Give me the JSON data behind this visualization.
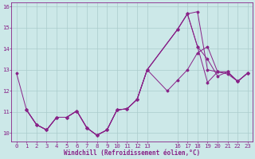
{
  "background_color": "#cce8e8",
  "line_color": "#882288",
  "grid_color": "#aacccc",
  "xlabel": "Windchill (Refroidissement éolien,°C)",
  "xlabel_fontsize": 5.5,
  "tick_fontsize": 5.2,
  "xlim": [
    -0.5,
    23.5
  ],
  "ylim": [
    9.6,
    16.2
  ],
  "yticks": [
    10,
    11,
    12,
    13,
    14,
    15,
    16
  ],
  "xticks": [
    0,
    1,
    2,
    3,
    4,
    5,
    6,
    7,
    8,
    9,
    10,
    11,
    12,
    13,
    16,
    17,
    18,
    19,
    20,
    21,
    22,
    23
  ],
  "lines": [
    {
      "x": [
        0,
        1,
        2,
        3,
        4,
        5,
        6,
        7,
        8,
        9,
        10,
        11,
        12,
        13,
        16,
        17,
        18,
        19,
        20,
        21,
        22,
        23
      ],
      "y": [
        12.85,
        11.1,
        10.4,
        10.15,
        10.75,
        10.75,
        11.05,
        10.25,
        9.9,
        10.15,
        11.1,
        11.15,
        11.6,
        13.0,
        14.9,
        15.65,
        15.75,
        13.0,
        12.9,
        12.8,
        12.45,
        12.85
      ]
    },
    {
      "x": [
        1,
        2,
        3,
        4,
        5,
        6,
        7,
        8,
        9,
        10,
        11,
        12,
        13,
        16,
        17,
        18,
        19,
        20,
        21,
        22,
        23
      ],
      "y": [
        11.1,
        10.4,
        10.15,
        10.75,
        10.75,
        11.05,
        10.25,
        9.9,
        10.15,
        11.1,
        11.15,
        11.6,
        13.0,
        14.9,
        15.65,
        14.1,
        12.4,
        12.9,
        12.9,
        12.45,
        12.85
      ]
    },
    {
      "x": [
        1,
        2,
        3,
        4,
        5,
        6,
        7,
        8,
        9,
        10,
        11,
        12,
        13,
        16,
        17,
        18,
        19,
        20,
        21,
        22,
        23
      ],
      "y": [
        11.1,
        10.4,
        10.15,
        10.75,
        10.75,
        11.05,
        10.25,
        9.9,
        10.15,
        11.1,
        11.15,
        11.6,
        13.0,
        14.9,
        15.65,
        14.1,
        13.5,
        12.7,
        12.9,
        12.45,
        12.85
      ]
    },
    {
      "x": [
        1,
        2,
        3,
        4,
        5,
        6,
        7,
        8,
        9,
        10,
        11,
        12,
        13,
        15,
        16,
        17,
        18,
        19,
        20,
        21,
        22,
        23
      ],
      "y": [
        11.1,
        10.4,
        10.15,
        10.75,
        10.75,
        11.05,
        10.25,
        9.9,
        10.15,
        11.1,
        11.15,
        11.6,
        13.0,
        12.0,
        12.5,
        13.0,
        13.8,
        14.1,
        12.9,
        12.9,
        12.45,
        12.85
      ]
    }
  ]
}
